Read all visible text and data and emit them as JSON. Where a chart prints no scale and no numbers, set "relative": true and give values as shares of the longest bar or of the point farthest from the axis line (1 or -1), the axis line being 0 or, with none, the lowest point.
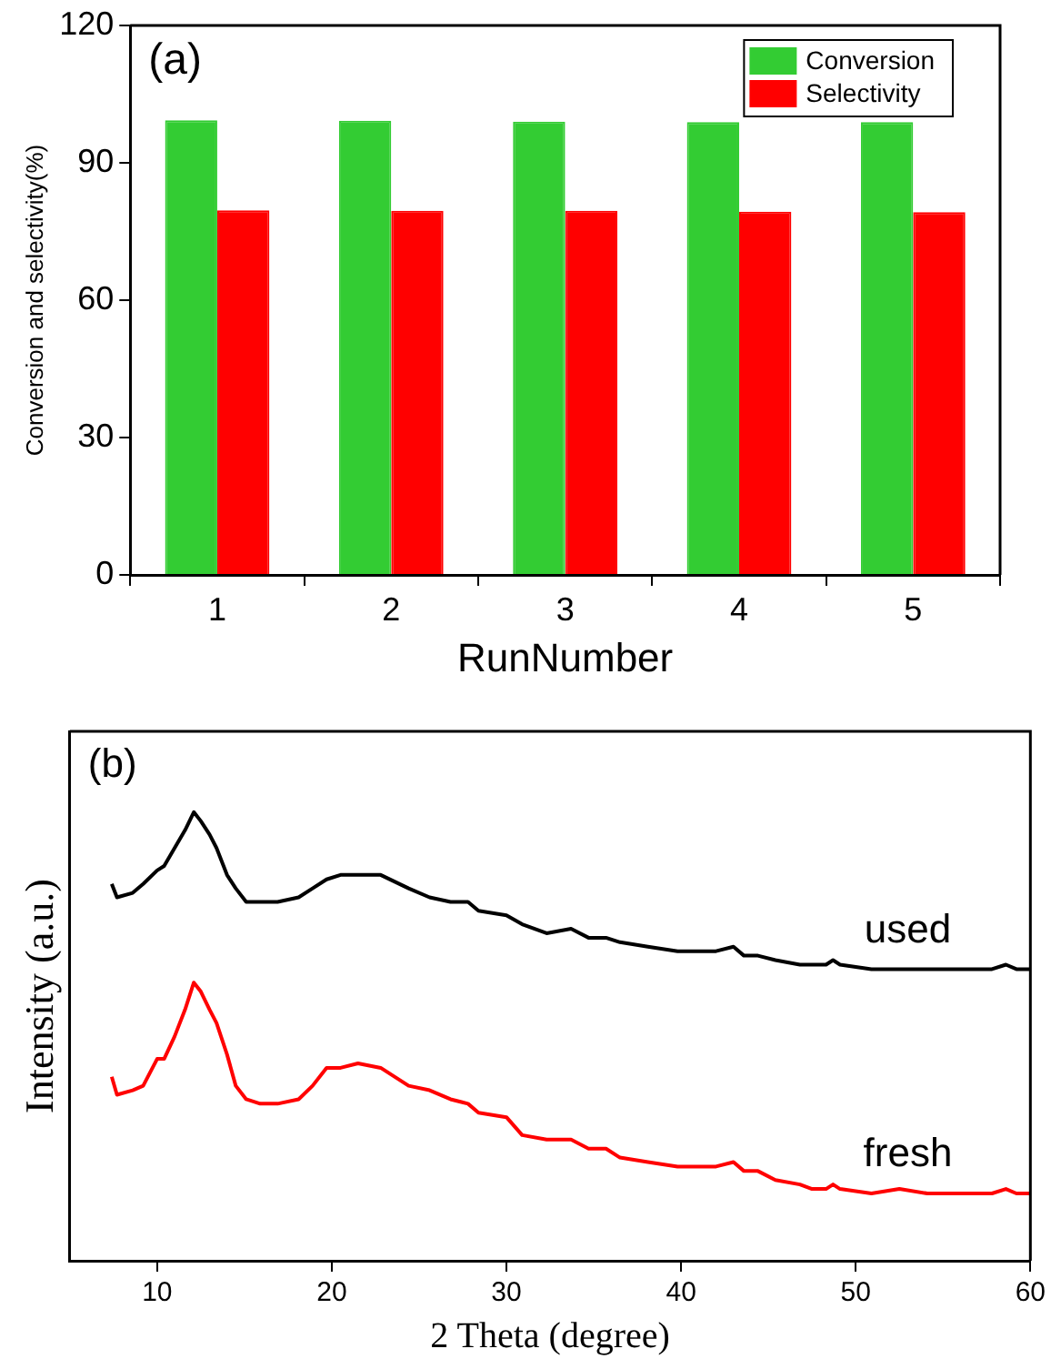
{
  "chart_data": [
    {
      "type": "bar",
      "annotations": [
        "(a)"
      ],
      "xlabel": "RunNumber",
      "ylabel": "Conversion and selectivity(%)",
      "categories": [
        "1",
        "2",
        "3",
        "4",
        "5"
      ],
      "series": [
        {
          "name": "Conversion",
          "color": "#33cc33",
          "values": [
            99.3,
            99.2,
            99.0,
            98.9,
            98.9
          ]
        },
        {
          "name": "Selectivity",
          "color": "#ff0000",
          "values": [
            79.6,
            79.5,
            79.5,
            79.3,
            79.2
          ]
        }
      ],
      "ylim": [
        0,
        120
      ],
      "yticks": [
        0,
        30,
        60,
        90,
        120
      ],
      "grid": false,
      "legend": "top right"
    },
    {
      "type": "line",
      "annotations": [
        "(b)"
      ],
      "xlabel": "2 Theta (degree)",
      "ylabel": "Intensity (a.u.)",
      "relative": true,
      "xlim": [
        5,
        60
      ],
      "xticks": [
        10,
        20,
        30,
        40,
        50,
        60
      ],
      "tick_labels": "x",
      "grid": false,
      "legend": false,
      "marker": "none",
      "series": [
        {
          "name": "used",
          "color": "#000000",
          "x": [
            7.4,
            7.7,
            8.6,
            9.2,
            10,
            10.4,
            11.0,
            11.6,
            12.1,
            12.5,
            13.0,
            13.4,
            14.0,
            14.5,
            15.1,
            15.9,
            16.9,
            18.1,
            18.9,
            19.7,
            20.5,
            21.5,
            22.8,
            24.4,
            25.6,
            26.8,
            27.8,
            28.4,
            30.0,
            30.9,
            32.3,
            33.7,
            34.7,
            35.7,
            36.5,
            38.1,
            39.8,
            42.0,
            43.0,
            43.6,
            44.4,
            45.4,
            46.8,
            47.5,
            48.3,
            48.7,
            49.1,
            50.9,
            52.5,
            54.1,
            55.5,
            56.6,
            57.8,
            58.6,
            59.2,
            60.0
          ],
          "values": [
            0.84,
            0.81,
            0.82,
            0.84,
            0.87,
            0.88,
            0.92,
            0.96,
            1,
            0.98,
            0.95,
            0.92,
            0.86,
            0.83,
            0.8,
            0.8,
            0.8,
            0.81,
            0.83,
            0.85,
            0.86,
            0.86,
            0.86,
            0.83,
            0.81,
            0.8,
            0.8,
            0.78,
            0.77,
            0.75,
            0.73,
            0.74,
            0.72,
            0.72,
            0.71,
            0.7,
            0.69,
            0.69,
            0.7,
            0.68,
            0.68,
            0.67,
            0.66,
            0.66,
            0.66,
            0.67,
            0.66,
            0.65,
            0.65,
            0.65,
            0.65,
            0.65,
            0.65,
            0.66,
            0.65,
            0.65
          ]
        },
        {
          "name": "fresh",
          "color": "#ff0000",
          "x": [
            7.4,
            7.7,
            8.6,
            9.2,
            10,
            10.4,
            11.0,
            11.6,
            12.1,
            12.5,
            13.0,
            13.4,
            14.0,
            14.5,
            15.1,
            15.9,
            16.9,
            18.1,
            18.9,
            19.7,
            20.5,
            21.5,
            22.8,
            24.4,
            25.6,
            26.8,
            27.8,
            28.4,
            30.0,
            30.9,
            32.3,
            33.7,
            34.7,
            35.7,
            36.5,
            38.1,
            39.8,
            42.0,
            43.0,
            43.6,
            44.4,
            45.4,
            46.8,
            47.5,
            48.3,
            48.7,
            49.1,
            50.9,
            52.5,
            54.1,
            55.5,
            56.6,
            57.8,
            58.6,
            59.2,
            60.0
          ],
          "values": [
            0.41,
            0.37,
            0.38,
            0.39,
            0.45,
            0.45,
            0.5,
            0.56,
            0.62,
            0.6,
            0.56,
            0.53,
            0.46,
            0.39,
            0.36,
            0.35,
            0.35,
            0.36,
            0.39,
            0.43,
            0.43,
            0.44,
            0.43,
            0.39,
            0.38,
            0.36,
            0.35,
            0.33,
            0.32,
            0.28,
            0.27,
            0.27,
            0.25,
            0.25,
            0.23,
            0.22,
            0.21,
            0.21,
            0.22,
            0.2,
            0.2,
            0.18,
            0.17,
            0.16,
            0.16,
            0.17,
            0.16,
            0.15,
            0.16,
            0.15,
            0.15,
            0.15,
            0.15,
            0.16,
            0.15,
            0.15
          ]
        }
      ]
    }
  ]
}
